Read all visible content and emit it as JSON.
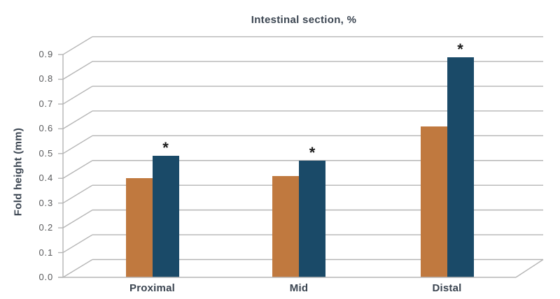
{
  "chart_data": {
    "type": "bar",
    "title": "Intestinal section, %",
    "xlabel": "",
    "ylabel": "Fold height (mm)",
    "categories": [
      "Proximal",
      "Mid",
      "Distal"
    ],
    "series": [
      {
        "key": "orange-bars",
        "color": "#C0793F",
        "values": [
          0.4,
          0.41,
          0.61
        ],
        "annotations": [
          "",
          "",
          ""
        ]
      },
      {
        "key": "navy-bars",
        "color": "#1A4A68",
        "values": [
          0.49,
          0.47,
          0.89
        ],
        "annotations": [
          "*",
          "*",
          "*"
        ]
      }
    ],
    "ylim": [
      0.0,
      0.9
    ],
    "ytick_step": 0.1,
    "ytick_labels": [
      "0.0",
      "0.1",
      "0.2",
      "0.3",
      "0.4",
      "0.5",
      "0.6",
      "0.7",
      "0.8",
      "0.9"
    ],
    "grid": "horizontal gridlines with oblique 3d depth offset",
    "legend_position": "none"
  },
  "colors": {
    "background": "#FFFFFF",
    "title_text": "#3B4551",
    "tick_text": "#58595B",
    "grid_line": "#B5B5B5",
    "marker_text": "#1C1C1C"
  }
}
